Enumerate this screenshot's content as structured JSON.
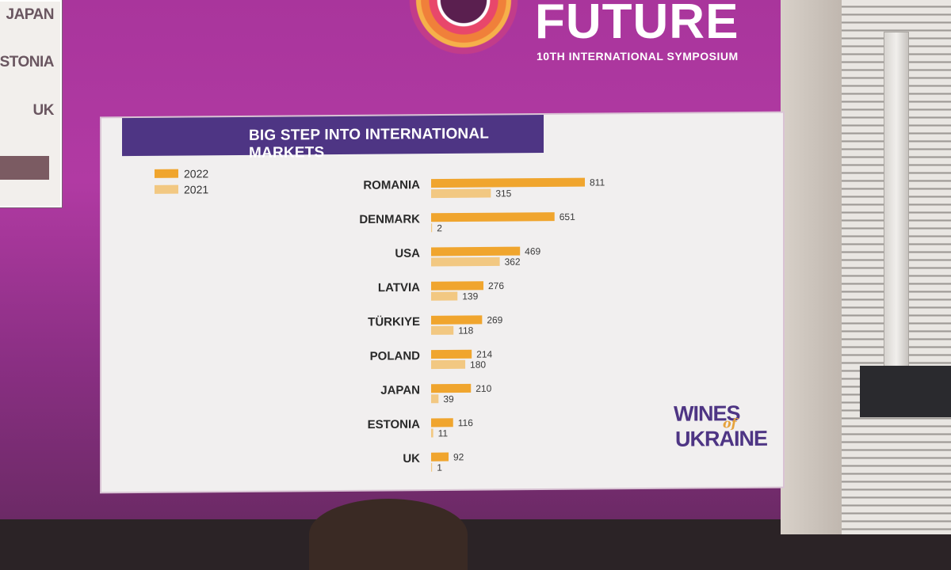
{
  "header": {
    "title": "FUTURE",
    "subtitle": "10TH INTERNATIONAL SYMPOSIUM"
  },
  "inset_slide": {
    "labels": [
      "JAPAN",
      "ESTONIA",
      "UK"
    ]
  },
  "slide": {
    "banner": "BIG STEP INTO INTERNATIONAL MARKETS",
    "brand": {
      "line1": "WINES",
      "connector": "of",
      "line2": "UKRAINE"
    }
  },
  "colors": {
    "series_2022": "#f0a52e",
    "series_2021": "#f2c882",
    "banner": "#4e3584",
    "screen": "#a9359c"
  },
  "chart_data": {
    "type": "bar",
    "orientation": "horizontal",
    "title": "BIG STEP INTO INTERNATIONAL MARKETS",
    "categories": [
      "ROMANIA",
      "DENMARK",
      "USA",
      "LATVIA",
      "TÜRKIYE",
      "POLAND",
      "JAPAN",
      "ESTONIA",
      "UK"
    ],
    "series": [
      {
        "name": "2022",
        "values": [
          811,
          651,
          469,
          276,
          269,
          214,
          210,
          116,
          92
        ]
      },
      {
        "name": "2021",
        "values": [
          315,
          2,
          362,
          139,
          118,
          180,
          39,
          11,
          1
        ]
      }
    ],
    "legend_position": "top-left",
    "grid": false,
    "data_labels": true
  }
}
